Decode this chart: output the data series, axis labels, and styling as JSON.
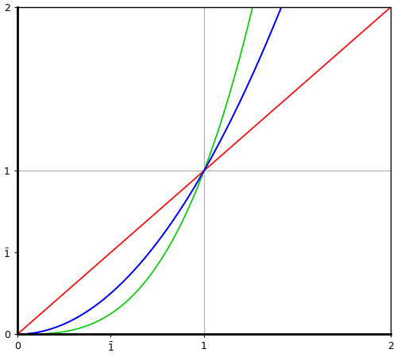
{
  "title": "",
  "xlim": [
    0,
    2
  ],
  "ylim": [
    0,
    2
  ],
  "x_ticks": [
    0,
    0.5,
    1,
    2
  ],
  "x_tick_labels": [
    "0",
    "̅1",
    "1",
    "2"
  ],
  "y_ticks": [
    0,
    0.5,
    1,
    2
  ],
  "y_tick_labels": [
    "0",
    "̅1",
    "1",
    "2"
  ],
  "line_red_color": "#ff0000",
  "line_blue_color": "#0000ff",
  "line_green_color": "#00cc00",
  "background_color": "#ffffff",
  "grid_color": "#aaaaaa",
  "axis_color": "#000000",
  "linewidth": 1.2,
  "figsize": [
    5.0,
    4.5
  ],
  "dpi": 100
}
